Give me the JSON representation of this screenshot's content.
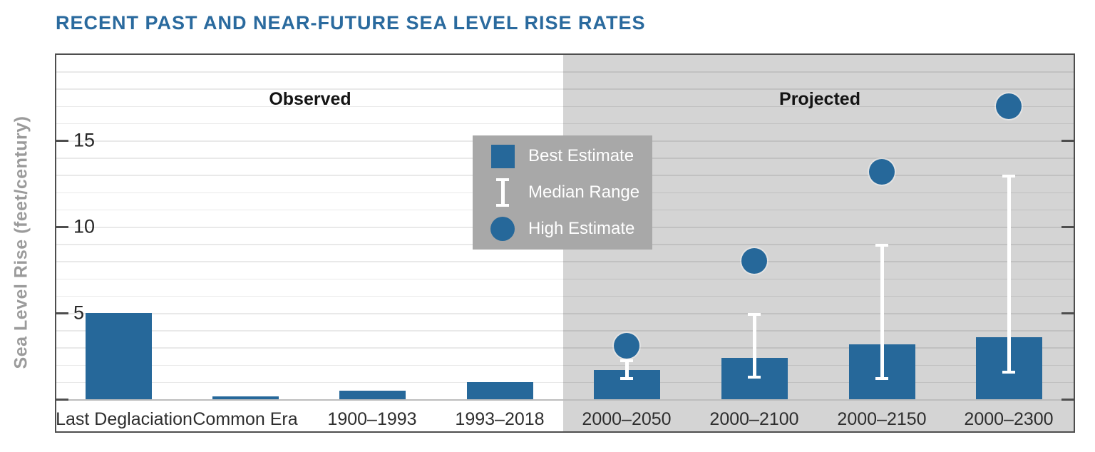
{
  "title": "RECENT PAST AND NEAR-FUTURE SEA LEVEL RISE RATES",
  "y_axis": {
    "label": "Sea Level Rise (feet/century)"
  },
  "sections": {
    "observed": "Observed",
    "projected": "Projected"
  },
  "legend": [
    {
      "icon": "best-estimate-square",
      "label": "Best Estimate"
    },
    {
      "icon": "median-range-bar",
      "label": "Median Range"
    },
    {
      "icon": "high-estimate-circle",
      "label": "High Estimate"
    }
  ],
  "colors": {
    "accent_blue": "#26689a",
    "title_blue": "#2a6a9e",
    "projected_panel_gray": "#d4d4d4",
    "legend_gray": "#a8a8a8",
    "error_bar_white": "#ffffff"
  },
  "chart_data": {
    "type": "bar",
    "title": "RECENT PAST AND NEAR-FUTURE SEA LEVEL RISE RATES",
    "ylabel": "Sea Level Rise (feet/century)",
    "ylim": [
      0,
      20
    ],
    "yticks": [
      5,
      10,
      15
    ],
    "gridline_step": 1,
    "legend_position": "upper-middle-left-of-projected",
    "categories": [
      "Last Deglaciation",
      "Common Era",
      "1900–1993",
      "1993–2018",
      "2000–2050",
      "2000–2100",
      "2000–2150",
      "2000–2300"
    ],
    "group_of_category": [
      "observed",
      "observed",
      "observed",
      "observed",
      "projected",
      "projected",
      "projected",
      "projected"
    ],
    "series": [
      {
        "name": "Best Estimate",
        "type": "bar",
        "values": [
          5,
          0.15,
          0.5,
          1,
          1.7,
          2.4,
          3.2,
          3.6
        ]
      },
      {
        "name": "Median Range",
        "type": "error-range",
        "values": [
          null,
          null,
          null,
          null,
          [
            1.1,
            2.3
          ],
          [
            1.2,
            5.0
          ],
          [
            1.1,
            9.0
          ],
          [
            1.5,
            13.0
          ]
        ]
      },
      {
        "name": "High Estimate",
        "type": "point",
        "values": [
          null,
          null,
          null,
          null,
          3.1,
          8.0,
          13.2,
          17.0
        ]
      }
    ]
  }
}
